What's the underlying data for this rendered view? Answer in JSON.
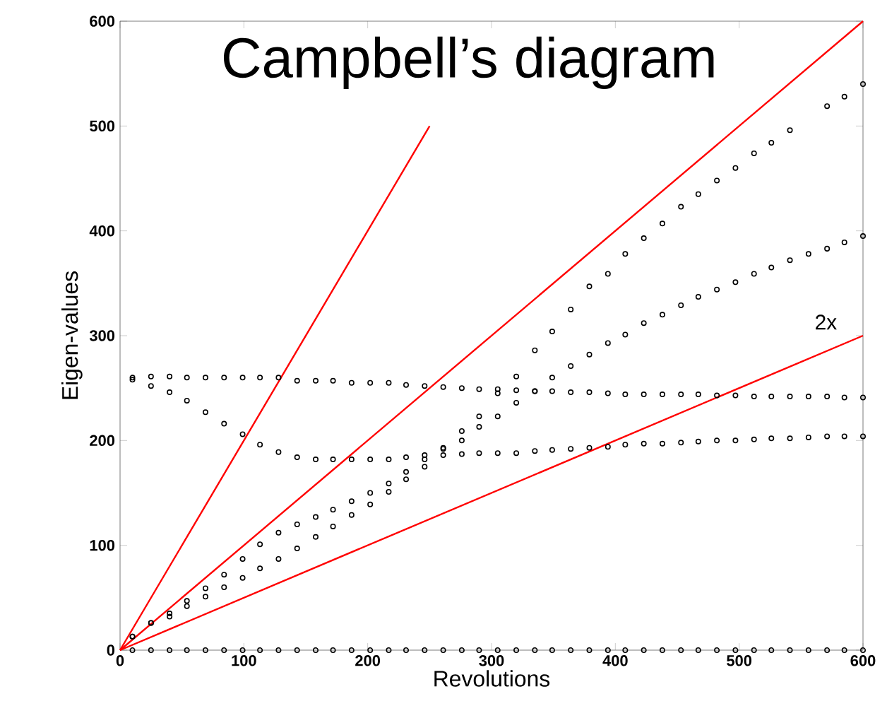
{
  "chart_data": {
    "type": "scatter",
    "title": "Campbell’s diagram",
    "xlabel": "Revolutions",
    "ylabel": "Eigen-values",
    "x": [
      10,
      25,
      40,
      54,
      69,
      84,
      99,
      113,
      128,
      143,
      158,
      172,
      187,
      202,
      217,
      231,
      246,
      261,
      276,
      290,
      305,
      320,
      335,
      349,
      364,
      379,
      394,
      408,
      423,
      438,
      453,
      467,
      482,
      497,
      512,
      526,
      541,
      556,
      571,
      585,
      600
    ],
    "marker": "circle",
    "grid": false,
    "xlim": [
      0,
      600
    ],
    "ylim": [
      0,
      600
    ],
    "xticks": [
      0,
      100,
      200,
      300,
      400,
      500,
      600
    ],
    "yticks": [
      0,
      100,
      200,
      300,
      400,
      500,
      600
    ],
    "series": [
      {
        "color": "#000000",
        "values": [
          260,
          261,
          261,
          260,
          260,
          260,
          260,
          260,
          260,
          257,
          257,
          257,
          255,
          255,
          255,
          253,
          252,
          251,
          250,
          249,
          249,
          248,
          247,
          247,
          246,
          246,
          245,
          244,
          244,
          244,
          244,
          244,
          243,
          243,
          242,
          242,
          242,
          242,
          242,
          241,
          241
        ]
      },
      {
        "color": "#000000",
        "values": [
          258,
          252,
          246,
          238,
          227,
          216,
          206,
          196,
          189,
          184,
          182,
          182,
          182,
          182,
          182,
          184,
          186,
          186,
          187,
          188,
          188,
          188,
          190,
          191,
          192,
          193,
          194,
          196,
          197,
          197,
          198,
          199,
          200,
          200,
          201,
          202,
          202,
          203,
          204,
          204,
          204
        ]
      },
      {
        "color": "#000000",
        "values": [
          13,
          26,
          32,
          42,
          51,
          60,
          69,
          78,
          87,
          97,
          108,
          118,
          129,
          139,
          151,
          163,
          175,
          192,
          200,
          213,
          223,
          236,
          247,
          260,
          271,
          282,
          293,
          301,
          312,
          320,
          329,
          337,
          344,
          351,
          359,
          365,
          372,
          378,
          383,
          389,
          395
        ]
      },
      {
        "color": "#000000",
        "values": [
          13,
          26,
          35,
          47,
          59,
          72,
          87,
          101,
          112,
          120,
          127,
          134,
          142,
          150,
          159,
          170,
          182,
          193,
          209,
          223,
          245,
          261,
          286,
          304,
          325,
          347,
          359,
          378,
          393,
          407,
          423,
          435,
          448,
          460,
          474,
          484,
          496,
          null,
          519,
          528,
          540
        ]
      },
      {
        "color": "#000000",
        "values": [
          0,
          0,
          0,
          0,
          0,
          0,
          0,
          0,
          0,
          0,
          0,
          0,
          0,
          0,
          0,
          0,
          0,
          0,
          0,
          0,
          0,
          0,
          0,
          0,
          0,
          0,
          0,
          0,
          0,
          0,
          0,
          0,
          0,
          0,
          0,
          0,
          0,
          0,
          0,
          0,
          0
        ]
      },
      {
        "type": "line",
        "marker": "none",
        "line_style": "solid",
        "color": "#ff0000",
        "x": [
          0,
          250
        ],
        "values": [
          0,
          500
        ]
      },
      {
        "type": "line",
        "marker": "none",
        "line_style": "solid",
        "color": "#ff0000",
        "x": [
          0,
          600
        ],
        "values": [
          0,
          600
        ]
      },
      {
        "type": "line",
        "marker": "none",
        "line_style": "solid",
        "color": "#ff0000",
        "x": [
          0,
          600
        ],
        "values": [
          0,
          300
        ]
      }
    ],
    "annotations": [
      "2x"
    ]
  }
}
